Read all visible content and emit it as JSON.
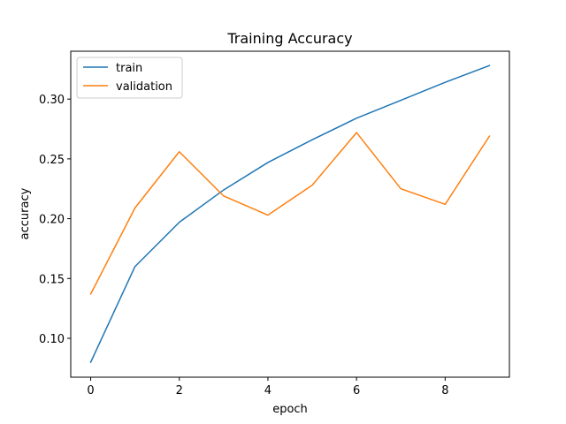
{
  "chart_data": {
    "type": "line",
    "title": "Training Accuracy",
    "xlabel": "epoch",
    "ylabel": "accuracy",
    "x": [
      0,
      1,
      2,
      3,
      4,
      5,
      6,
      7,
      8,
      9
    ],
    "xlim": [
      -0.45,
      9.45
    ],
    "ylim": [
      0.0675,
      0.34
    ],
    "xticks": [
      0,
      2,
      4,
      6,
      8
    ],
    "xtick_labels": [
      "0",
      "2",
      "4",
      "6",
      "8"
    ],
    "yticks": [
      0.1,
      0.15,
      0.2,
      0.25,
      0.3
    ],
    "ytick_labels": [
      "0.10",
      "0.15",
      "0.20",
      "0.25",
      "0.30"
    ],
    "grid": false,
    "legend_position": "upper-left",
    "series": [
      {
        "name": "train",
        "color": "#1f77b4",
        "values": [
          0.08,
          0.16,
          0.197,
          0.224,
          0.247,
          0.266,
          0.284,
          0.299,
          0.314,
          0.328
        ]
      },
      {
        "name": "validation",
        "color": "#ff7f0e",
        "values": [
          0.137,
          0.209,
          0.256,
          0.219,
          0.203,
          0.228,
          0.272,
          0.225,
          0.212,
          0.269
        ]
      }
    ]
  }
}
